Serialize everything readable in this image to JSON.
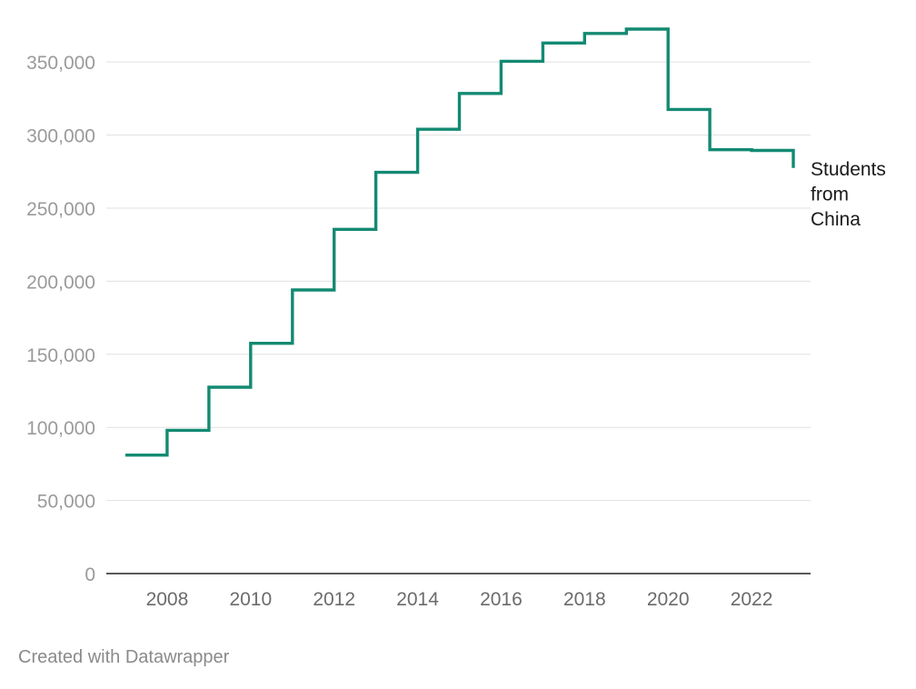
{
  "chart_data": {
    "type": "line",
    "interpolation": "step-after",
    "x": [
      2007,
      2008,
      2009,
      2010,
      2011,
      2012,
      2013,
      2014,
      2015,
      2016,
      2017,
      2018,
      2019,
      2020,
      2021,
      2022,
      2023
    ],
    "series": [
      {
        "name": "Students from China",
        "color": "#138a72",
        "values": [
          81000,
          98000,
          127500,
          157500,
          194000,
          235500,
          274500,
          304000,
          328500,
          350500,
          363000,
          369500,
          372500,
          317500,
          290000,
          289500,
          277500
        ]
      }
    ],
    "ylim": [
      0,
      372500
    ],
    "yticks": [
      {
        "value": 0,
        "label": "0"
      },
      {
        "value": 50000,
        "label": "50,000"
      },
      {
        "value": 100000,
        "label": "100,000"
      },
      {
        "value": 150000,
        "label": "150,000"
      },
      {
        "value": 200000,
        "label": "200,000"
      },
      {
        "value": 250000,
        "label": "250,000"
      },
      {
        "value": 300000,
        "label": "300,000"
      },
      {
        "value": 350000,
        "label": "350,000"
      }
    ],
    "xticks": [
      {
        "value": 2008,
        "label": "2008"
      },
      {
        "value": 2010,
        "label": "2010"
      },
      {
        "value": 2012,
        "label": "2012"
      },
      {
        "value": 2014,
        "label": "2014"
      },
      {
        "value": 2016,
        "label": "2016"
      },
      {
        "value": 2018,
        "label": "2018"
      },
      {
        "value": 2020,
        "label": "2020"
      },
      {
        "value": 2022,
        "label": "2022"
      }
    ],
    "series_label_lines": [
      "Students",
      "from",
      "China"
    ],
    "grid": true
  },
  "footer": {
    "credit": "Created with Datawrapper"
  }
}
